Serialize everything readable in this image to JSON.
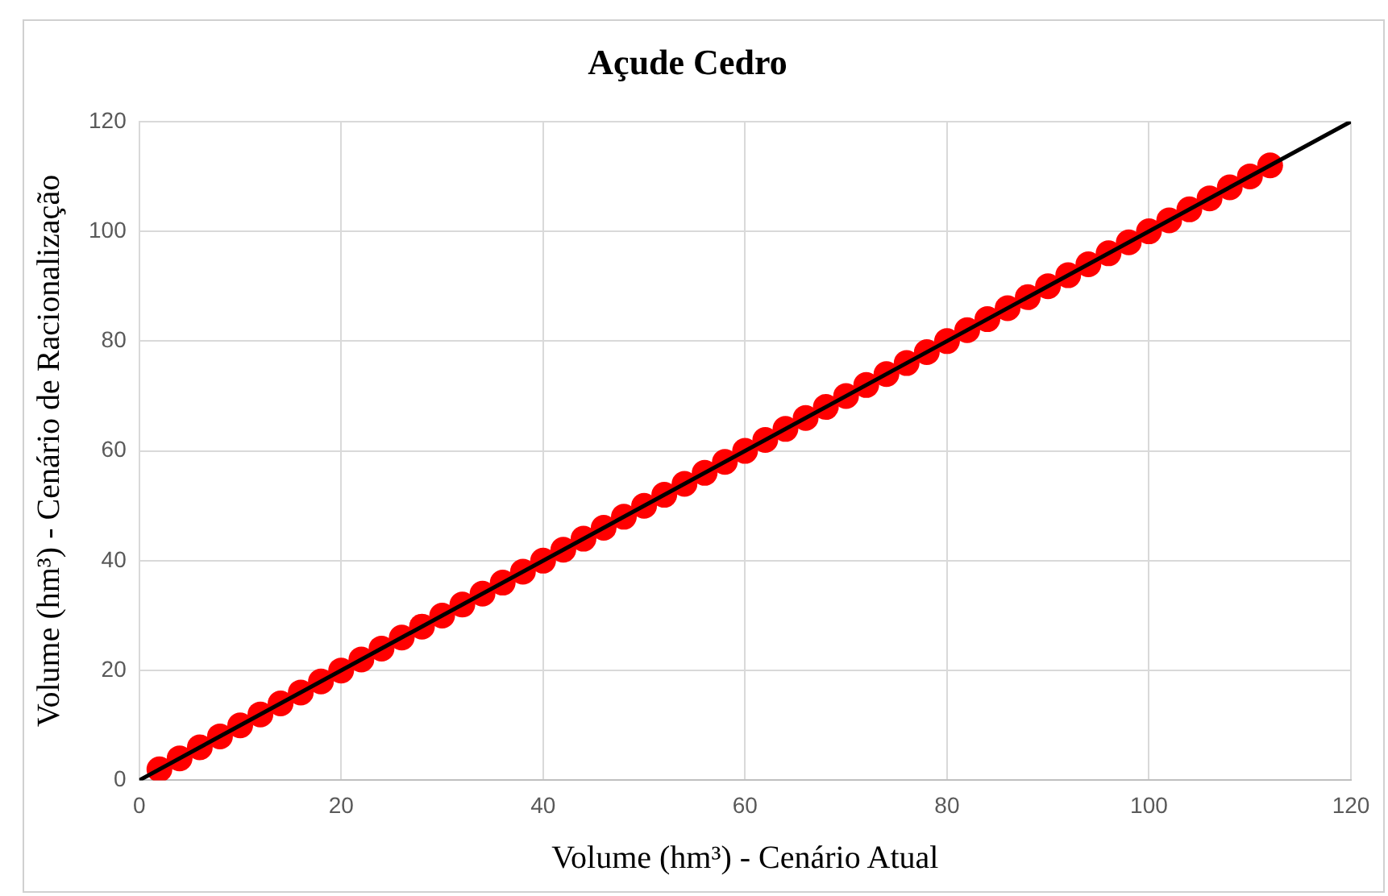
{
  "chart_data": {
    "type": "scatter",
    "title": "Açude Cedro",
    "xlabel": "Volume (hm³) - Cenário Atual",
    "ylabel": "Volume (hm³) - Cenário de Racionalização",
    "xlim": [
      0,
      120
    ],
    "ylim": [
      0,
      120
    ],
    "xticks": [
      0,
      20,
      40,
      60,
      80,
      100,
      120
    ],
    "yticks": [
      0,
      20,
      40,
      60,
      80,
      100,
      120
    ],
    "grid": true,
    "legend": false,
    "series": [
      {
        "type": "line",
        "color": "#000000",
        "marker": "none",
        "x": [
          0,
          120
        ],
        "values": [
          0,
          120
        ]
      },
      {
        "color": "#ff0000",
        "marker": "circle",
        "x": [
          2,
          4,
          6,
          8,
          10,
          12,
          14,
          16,
          18,
          20,
          22,
          24,
          26,
          28,
          30,
          32,
          34,
          36,
          38,
          40,
          42,
          44,
          46,
          48,
          50,
          52,
          54,
          56,
          58,
          60,
          62,
          64,
          66,
          68,
          70,
          72,
          74,
          76,
          78,
          80,
          82,
          84,
          86,
          88,
          90,
          92,
          94,
          96,
          98,
          100,
          102,
          104,
          106,
          108,
          110,
          112
        ],
        "values": [
          2,
          4,
          6,
          8,
          10,
          12,
          14,
          16,
          18,
          20,
          22,
          24,
          26,
          28,
          30,
          32,
          34,
          36,
          38,
          40,
          42,
          44,
          46,
          48,
          50,
          52,
          54,
          56,
          58,
          60,
          62,
          64,
          66,
          68,
          70,
          72,
          74,
          76,
          78,
          80,
          82,
          84,
          86,
          88,
          90,
          92,
          94,
          96,
          98,
          100,
          102,
          104,
          106,
          108,
          110,
          112
        ]
      }
    ]
  }
}
